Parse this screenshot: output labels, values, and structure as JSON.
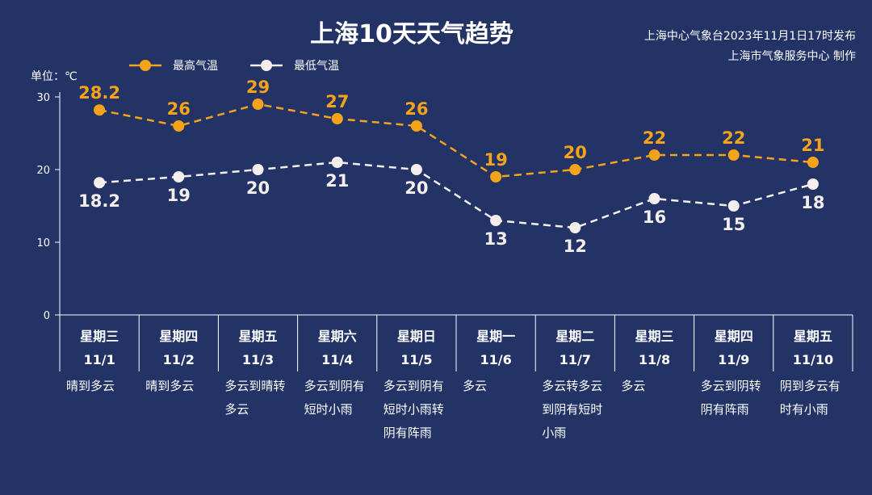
{
  "chart_data": {
    "type": "line",
    "title": "上海10天天气趋势",
    "source_line1": "上海中心气象台2023年11月1日17时发布",
    "source_line2": "上海市气象服务中心 制作",
    "unit_label": "单位：℃",
    "ylim": [
      0,
      30
    ],
    "yticks": [
      0,
      10,
      20,
      30
    ],
    "grid": false,
    "legend_position": "top-left",
    "categories": [
      "11/1",
      "11/2",
      "11/3",
      "11/4",
      "11/5",
      "11/6",
      "11/7",
      "11/8",
      "11/9",
      "11/10"
    ],
    "weekdays": [
      "星期三",
      "星期四",
      "星期五",
      "星期六",
      "星期日",
      "星期一",
      "星期二",
      "星期三",
      "星期四",
      "星期五"
    ],
    "weather": [
      [
        "晴到多云"
      ],
      [
        "晴到多云"
      ],
      [
        "多云到晴转",
        "多云"
      ],
      [
        "多云到阴有",
        "短时小雨"
      ],
      [
        "多云到阴有",
        "短时小雨转",
        "阴有阵雨"
      ],
      [
        "多云"
      ],
      [
        "多云转多云",
        "到阴有短时",
        "小雨"
      ],
      [
        "多云"
      ],
      [
        "多云到阴转",
        "阴有阵雨"
      ],
      [
        "阴到多云有",
        "时有小雨"
      ]
    ],
    "series": [
      {
        "name": "最高气温",
        "color": "#f5a31a",
        "values": [
          28.2,
          26,
          29,
          27,
          26,
          19,
          20,
          22,
          22,
          21
        ],
        "labels": [
          "28.2",
          "26",
          "29",
          "27",
          "26",
          "19",
          "20",
          "22",
          "22",
          "21"
        ]
      },
      {
        "name": "最低气温",
        "color": "#f4eeee",
        "values": [
          18.2,
          19,
          20,
          21,
          20,
          13,
          12,
          16,
          15,
          18
        ],
        "labels": [
          "18.2",
          "19",
          "20",
          "21",
          "20",
          "13",
          "12",
          "16",
          "15",
          "18"
        ]
      }
    ]
  }
}
